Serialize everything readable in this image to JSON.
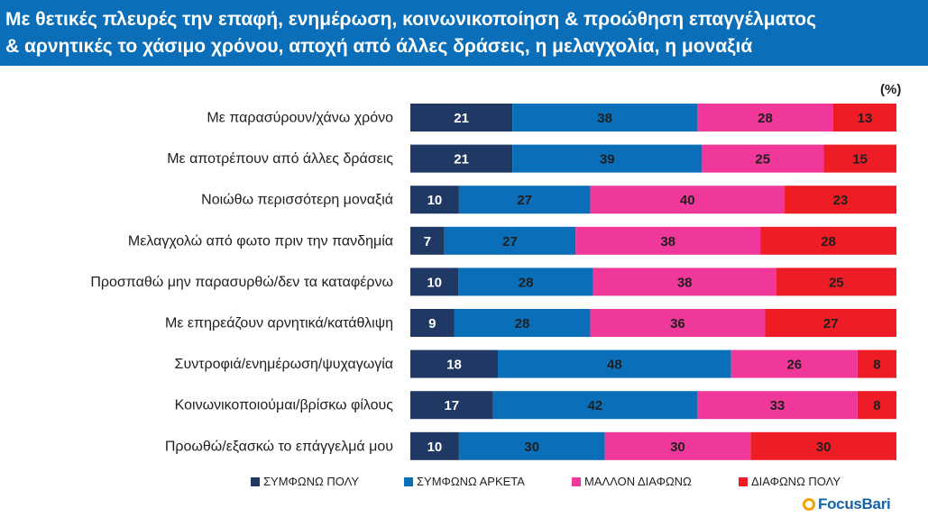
{
  "header": {
    "line1": "Με θετικές πλευρές την επαφή, ενημέρωση, κοινωνικοποίηση & προώθηση επαγγέλματος",
    "line2": "& αρνητικές το χάσιμο χρόνου, αποχή από άλλες δράσεις, η μελαγχολία, η μοναξιά"
  },
  "unit_label": "(%)",
  "brand": {
    "name": "FocusBari",
    "accent": "#f5a300",
    "text_color": "#1763a8"
  },
  "chart_data": {
    "type": "bar",
    "orientation": "horizontal",
    "stacked": true,
    "title": "Με θετικές πλευρές την επαφή, ενημέρωση, κοινωνικοποίηση & προώθηση επαγγέλματος & αρνητικές το χάσιμο χρόνου, αποχή από άλλες δράσεις, η μελαγχολία, η μοναξιά",
    "unit": "(%)",
    "categories": [
      "Με παρασύρουν/χάνω χρόνο",
      "Με αποτρέπουν από άλλες δράσεις",
      "Νοιώθω περισσότερη μοναξιά",
      "Μελαγχολώ από φωτο πριν την πανδημία",
      "Προσπαθώ μην παρασυρθώ/δεν τα καταφέρνω",
      "Με επηρεάζουν αρνητικά/κατάθλιψη",
      "Συντροφιά/ενημέρωση/ψυχαγωγία",
      "Κοινωνικοποιούμαι/βρίσκω φίλους",
      "Προωθώ/εξασκώ το επάγγελμά μου"
    ],
    "series": [
      {
        "name": "ΣΥΜΦΩΝΩ ΠΟΛΥ",
        "color": "#1f3864",
        "values": [
          21,
          21,
          10,
          7,
          10,
          9,
          18,
          17,
          10
        ]
      },
      {
        "name": "ΣΥΜΦΩΝΩ ΑΡΚΕΤΑ",
        "color": "#0a6fb8",
        "values": [
          38,
          39,
          27,
          27,
          28,
          28,
          48,
          42,
          30
        ]
      },
      {
        "name": "ΜΑΛΛΟΝ ΔΙΑΦΩΝΩ",
        "color": "#f0389a",
        "values": [
          28,
          25,
          40,
          38,
          38,
          36,
          26,
          33,
          30
        ]
      },
      {
        "name": "ΔΙΑΦΩΝΩ ΠΟΛΥ",
        "color": "#ee1c25",
        "values": [
          13,
          15,
          23,
          28,
          25,
          27,
          8,
          8,
          30
        ]
      }
    ],
    "legend_position": "bottom",
    "grid": false
  }
}
